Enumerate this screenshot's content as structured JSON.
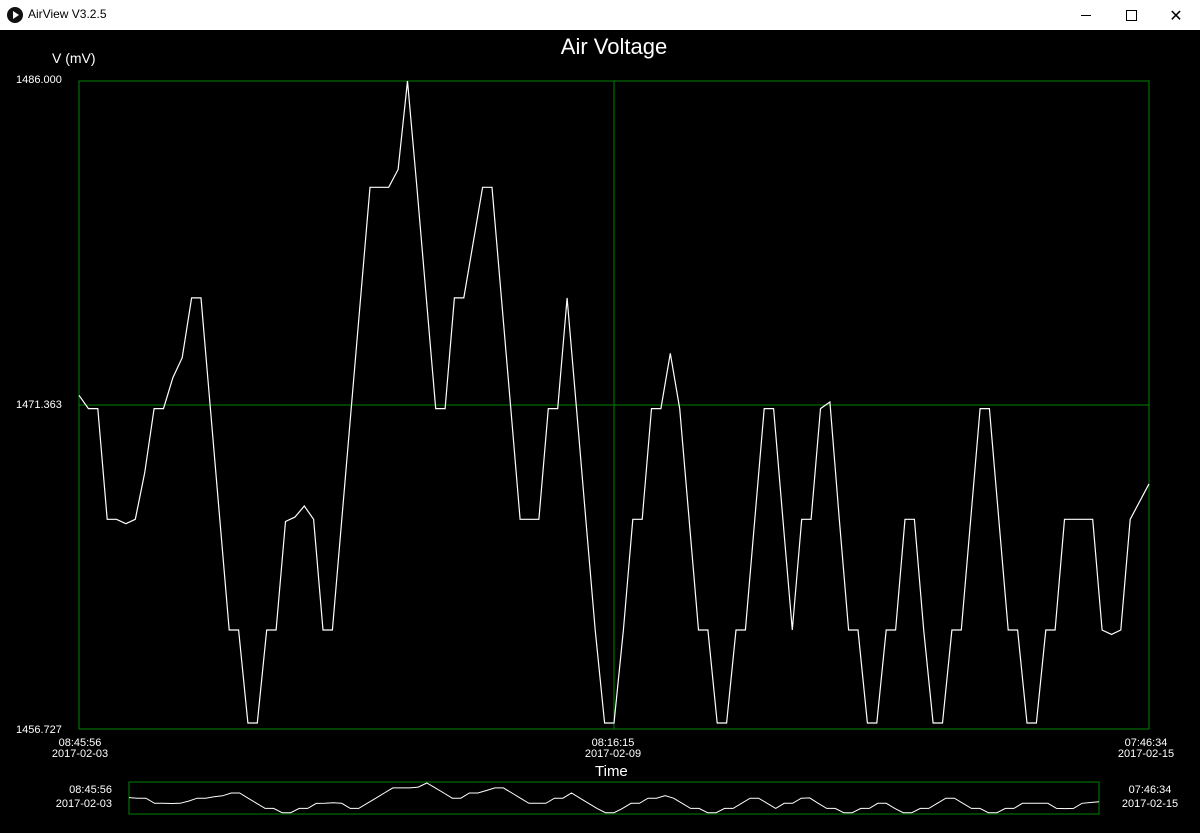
{
  "window": {
    "title": "AirView V3.2.5",
    "minimize": "—",
    "maximize": "□",
    "close": "✕",
    "app_icon": "play-circle-icon"
  },
  "chart_data": {
    "type": "line",
    "title": "Air Voltage",
    "ylabel": "V (mV)",
    "xlabel": "Time",
    "ylim": [
      1456.727,
      1486.0
    ],
    "y_ticks": [
      "1486.000",
      "1471.363",
      "1456.727"
    ],
    "x_range": [
      "2017-02-03 08:45:56",
      "2017-02-15 07:46:34"
    ],
    "x_ticks": [
      {
        "time": "08:45:56",
        "date": "2017-02-03"
      },
      {
        "time": "08:16:15",
        "date": "2017-02-09"
      },
      {
        "time": "07:46:34",
        "date": "2017-02-15"
      }
    ],
    "grid": true,
    "series": [
      {
        "values": [
          1471.8,
          1471.2,
          1471.2,
          1466.2,
          1466.2,
          1466.0,
          1466.2,
          1468.3,
          1471.2,
          1471.2,
          1472.6,
          1473.5,
          1476.2,
          1476.2,
          1471.2,
          1466.2,
          1461.2,
          1461.2,
          1457.0,
          1457.0,
          1461.2,
          1461.2,
          1466.1,
          1466.3,
          1466.8,
          1466.2,
          1461.2,
          1461.2,
          1466.2,
          1471.2,
          1476.2,
          1481.2,
          1481.2,
          1481.2,
          1482.0,
          1486.0,
          1481.2,
          1476.2,
          1471.2,
          1471.2,
          1476.2,
          1476.2,
          1478.7,
          1481.2,
          1481.2,
          1476.2,
          1471.2,
          1466.2,
          1466.2,
          1466.2,
          1471.2,
          1471.2,
          1476.2,
          1471.2,
          1466.2,
          1461.2,
          1457.0,
          1457.0,
          1461.2,
          1466.2,
          1466.2,
          1471.2,
          1471.2,
          1473.7,
          1471.2,
          1466.2,
          1461.2,
          1461.2,
          1457.0,
          1457.0,
          1461.2,
          1461.2,
          1466.2,
          1471.2,
          1471.2,
          1466.2,
          1461.2,
          1466.2,
          1466.2,
          1471.2,
          1471.5,
          1466.2,
          1461.2,
          1461.2,
          1457.0,
          1457.0,
          1461.2,
          1461.2,
          1466.2,
          1466.2,
          1461.2,
          1457.0,
          1457.0,
          1461.2,
          1461.2,
          1466.2,
          1471.2,
          1471.2,
          1466.2,
          1461.2,
          1461.2,
          1457.0,
          1457.0,
          1461.2,
          1461.2,
          1466.2,
          1466.2,
          1466.2,
          1466.2,
          1461.2,
          1461.0,
          1461.2,
          1466.2,
          1467.0,
          1467.8
        ]
      }
    ]
  },
  "overview": {
    "start_time": "08:45:56",
    "start_date": "2017-02-03",
    "end_time": "07:46:34",
    "end_date": "2017-02-15"
  },
  "colors": {
    "grid": "#008000",
    "line": "#ffffff",
    "background": "#000000"
  }
}
